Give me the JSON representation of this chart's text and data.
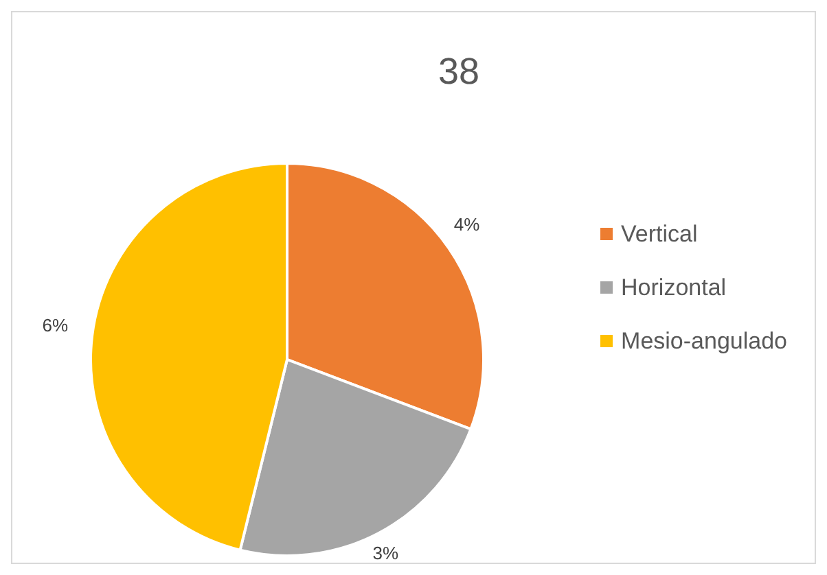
{
  "chart_data": {
    "type": "pie",
    "title": "38",
    "categories": [
      "Vertical",
      "Horizontal",
      "Mesio-angulado"
    ],
    "values": [
      4,
      3,
      6
    ],
    "value_labels": [
      "4%",
      "3%",
      "6%"
    ],
    "colors": [
      "#ed7d31",
      "#a5a5a5",
      "#ffc000"
    ],
    "legend": "right"
  }
}
